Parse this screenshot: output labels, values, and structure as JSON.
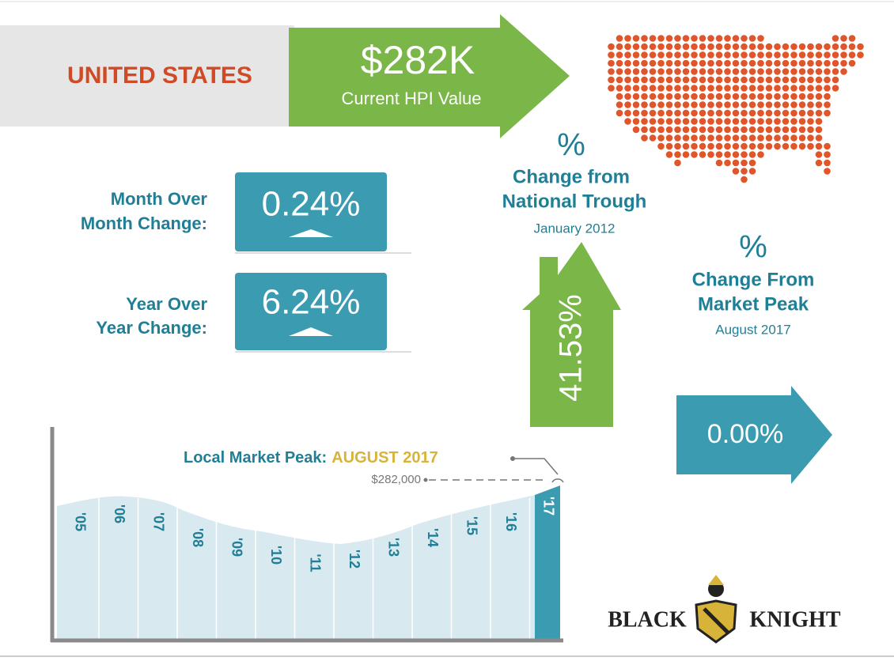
{
  "header": {
    "region": "UNITED STATES",
    "hpi_value": "$282K",
    "hpi_label": "Current HPI Value"
  },
  "changes": [
    {
      "label_lines": [
        "Month Over",
        "Month Change:"
      ],
      "value": "0.24%"
    },
    {
      "label_lines": [
        "Year Over",
        "Year Change:"
      ],
      "value": "6.24%"
    }
  ],
  "trough": {
    "symbol": "%",
    "title_lines": [
      "Change from",
      "National Trough"
    ],
    "date": "January 2012",
    "value": "41.53%"
  },
  "peak": {
    "symbol": "%",
    "title_lines": [
      "Change From",
      "Market Peak"
    ],
    "date": "August 2017",
    "value": "0.00%"
  },
  "local_peak": {
    "label": "Local Market Peak:",
    "date": "AUGUST 2017",
    "value": "$282,000"
  },
  "years": [
    "'05",
    "'06",
    "'07",
    "'08",
    "'09",
    "'10",
    "'11",
    "'12",
    "'13",
    "'14",
    "'15",
    "'16",
    "'17"
  ],
  "brand": {
    "left": "BLACK",
    "right": "KNIGHT"
  }
}
